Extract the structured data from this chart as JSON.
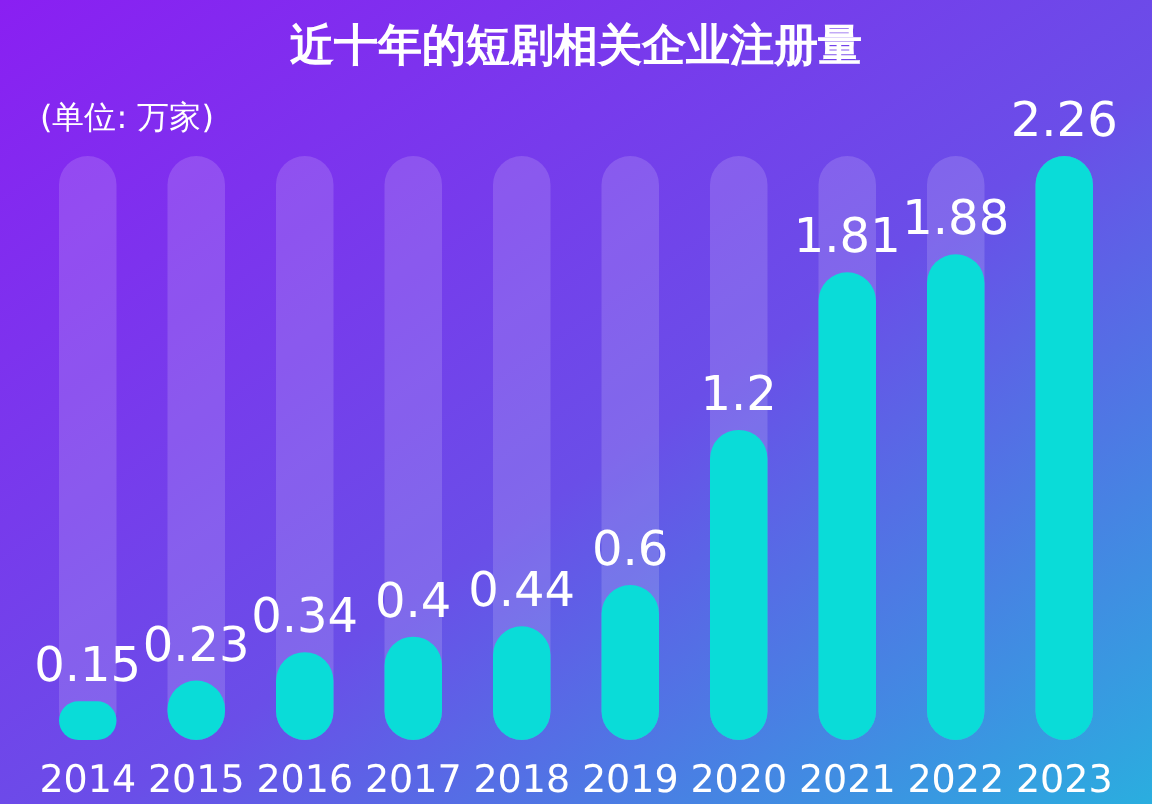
{
  "chart_data": {
    "type": "bar",
    "title": "近十年的短剧相关企业注册量",
    "annotations": [
      "(单位: 万家)"
    ],
    "categories": [
      "2014",
      "2015",
      "2016",
      "2017",
      "2018",
      "2019",
      "2020",
      "2021",
      "2022",
      "2023"
    ],
    "values": [
      0.15,
      0.23,
      0.34,
      0.4,
      0.44,
      0.6,
      1.2,
      1.81,
      1.88,
      2.26
    ],
    "color": "#0adcd8",
    "data_labels": true
  }
}
